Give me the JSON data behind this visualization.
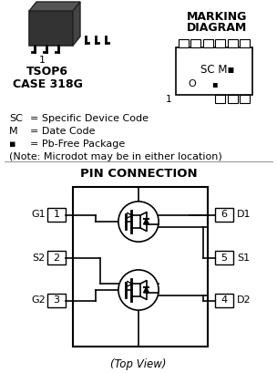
{
  "bg_color": "#ffffff",
  "title_marking": "MARKING\nDIAGRAM",
  "title_pin": "PIN CONNECTION",
  "tsop_label": "TSOP6",
  "case_label": "CASE 318G",
  "legend_lines": [
    [
      "SC",
      "= Specific Device Code"
    ],
    [
      "M",
      "= Date Code"
    ],
    [
      "▪",
      "= Pb-Free Package"
    ],
    [
      "",
      "(Note: Microdot may be in either location)"
    ]
  ],
  "pin_labels_left": [
    "G1",
    "S2",
    "G2"
  ],
  "pin_nums_left": [
    "1",
    "2",
    "3"
  ],
  "pin_labels_right": [
    "D1",
    "S1",
    "D2"
  ],
  "pin_nums_right": [
    "6",
    "5",
    "4"
  ],
  "top_view_label": "(Top View)"
}
